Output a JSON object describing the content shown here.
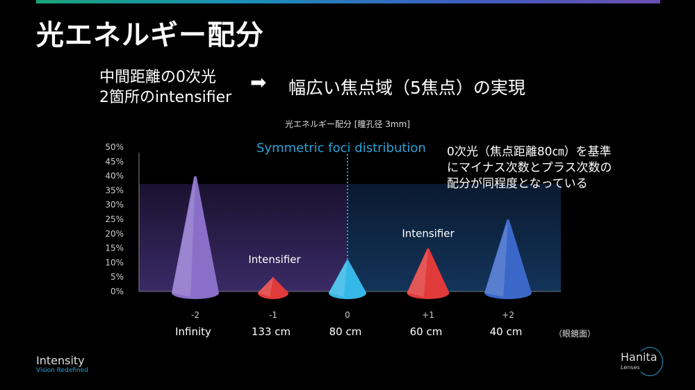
{
  "title": "光エネルギー配分",
  "subtitle_left": [
    "中間距離の0次光",
    "2箇所のintensifier"
  ],
  "arrow_icon": "right-arrow-icon",
  "subtitle_right": "幅広い焦点域（5焦点）の実現",
  "annotation_symmetric": "Symmetric foci distribution",
  "note": [
    "0次光（焦点距離80㎝）を基準",
    "にマイナス次数とプラス次数の",
    "配分が同程度となっている"
  ],
  "eye_label": "（眼鏡面）",
  "logos": {
    "intensity": "Intensity",
    "intensity_tag": "Vision Redefined",
    "hanita": "Hanita",
    "hanita_tag": "Lenses"
  },
  "chart_data": {
    "type": "bar",
    "title": "光エネルギー配分 [瞳孔径  3mm]",
    "categories": [
      "-2",
      "-1",
      "0",
      "+1",
      "+2"
    ],
    "distances": [
      "Infinity",
      "133 cm",
      "80 cm",
      "60 cm",
      "40 cm"
    ],
    "values": [
      40,
      5,
      11,
      15,
      25
    ],
    "colors": [
      "#8a6fc8",
      "#e03a3a",
      "#35b8e8",
      "#e03a3a",
      "#3b68c8"
    ],
    "labels": {
      "1": "Intensifier",
      "3": "Intensifier"
    },
    "yticks": [
      "0%",
      "5%",
      "10%",
      "15%",
      "20%",
      "25%",
      "30%",
      "35%",
      "40%",
      "45%",
      "50%"
    ],
    "ylim": [
      0,
      50
    ],
    "ylabel": "",
    "xlabel": ""
  }
}
